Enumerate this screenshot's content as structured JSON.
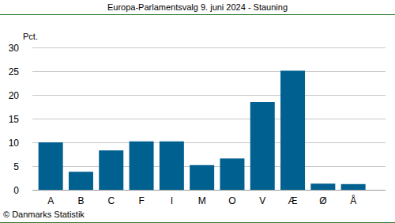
{
  "chart_data": {
    "type": "bar",
    "title": "Europa-Parlamentsvalg 9. juni 2024 - Stauning",
    "y_label": "Pct.",
    "source": "© Danmarks Statistik",
    "categories": [
      "A",
      "B",
      "C",
      "F",
      "I",
      "M",
      "O",
      "V",
      "Æ",
      "Ø",
      "Å"
    ],
    "values": [
      10.0,
      3.8,
      8.3,
      10.2,
      10.2,
      5.2,
      6.6,
      18.5,
      25.1,
      1.3,
      1.2
    ],
    "color": "#00608f",
    "ylim": [
      0,
      30
    ],
    "yticks": [
      0,
      5,
      10,
      15,
      20,
      25,
      30
    ],
    "grid": true
  }
}
